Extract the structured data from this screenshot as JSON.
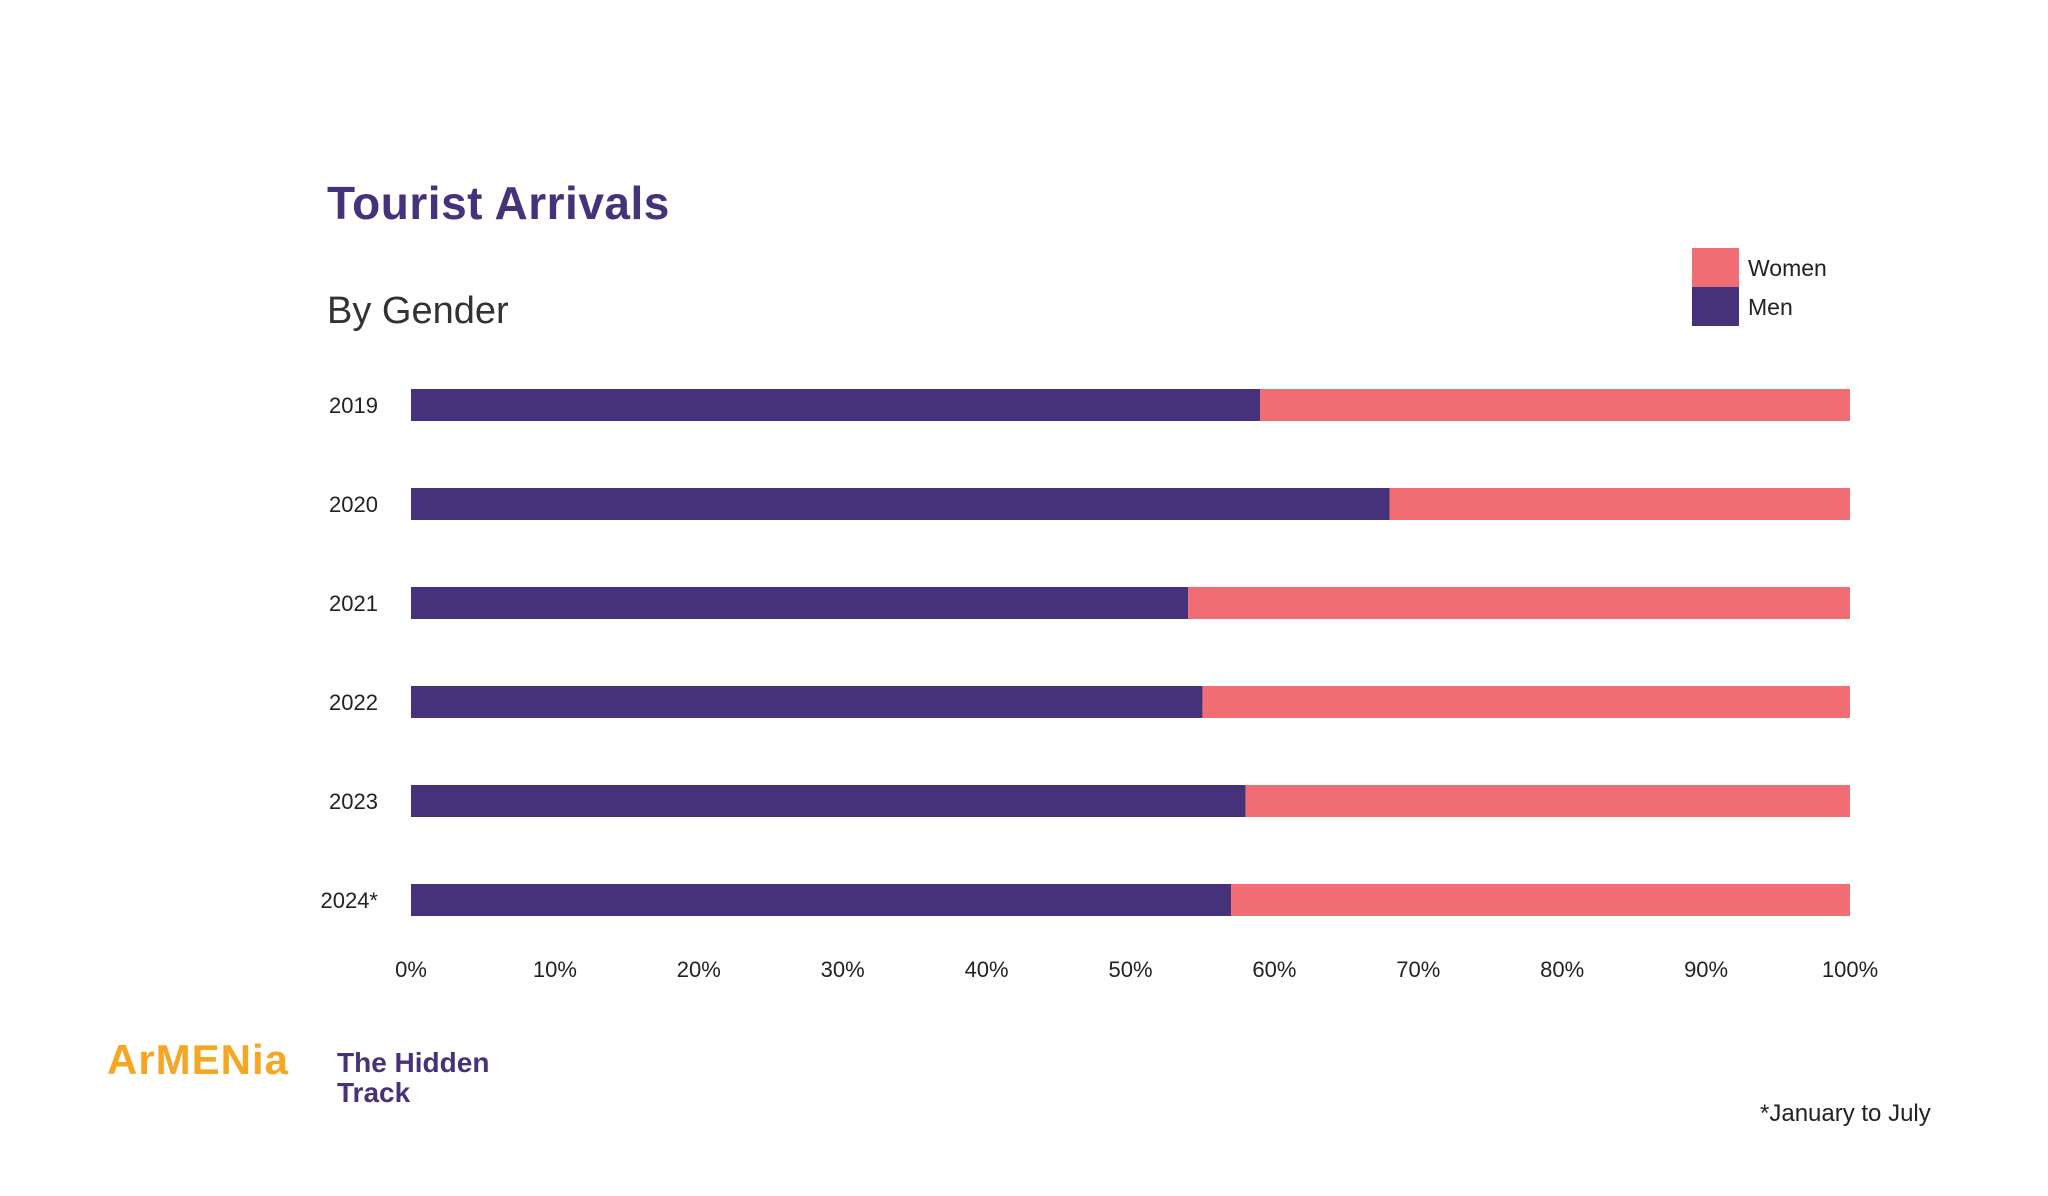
{
  "chart_data": {
    "type": "bar",
    "orientation": "horizontal",
    "stacked": true,
    "title": "Tourist Arrivals",
    "subtitle": "By Gender",
    "categories": [
      "2019",
      "2020",
      "2021",
      "2022",
      "2023",
      "2024*"
    ],
    "series": [
      {
        "name": "Men",
        "color": "#46327a",
        "values": [
          59,
          68,
          54,
          55,
          58,
          57
        ]
      },
      {
        "name": "Women",
        "color": "#f06d74",
        "values": [
          41,
          32,
          46,
          45,
          42,
          43
        ]
      }
    ],
    "xlim": [
      0,
      100
    ],
    "x_ticks": [
      "0%",
      "10%",
      "20%",
      "30%",
      "40%",
      "50%",
      "60%",
      "70%",
      "80%",
      "90%",
      "100%"
    ],
    "grid": false,
    "legend": {
      "position": "top-right",
      "entries": [
        "Women",
        "Men"
      ]
    }
  },
  "footnote": "*January to July",
  "branding": {
    "name": "ArMENia",
    "tagline_line1": "The Hidden",
    "tagline_line2": "Track",
    "brand_color": "#f5a623",
    "accent_color": "#46327a"
  }
}
